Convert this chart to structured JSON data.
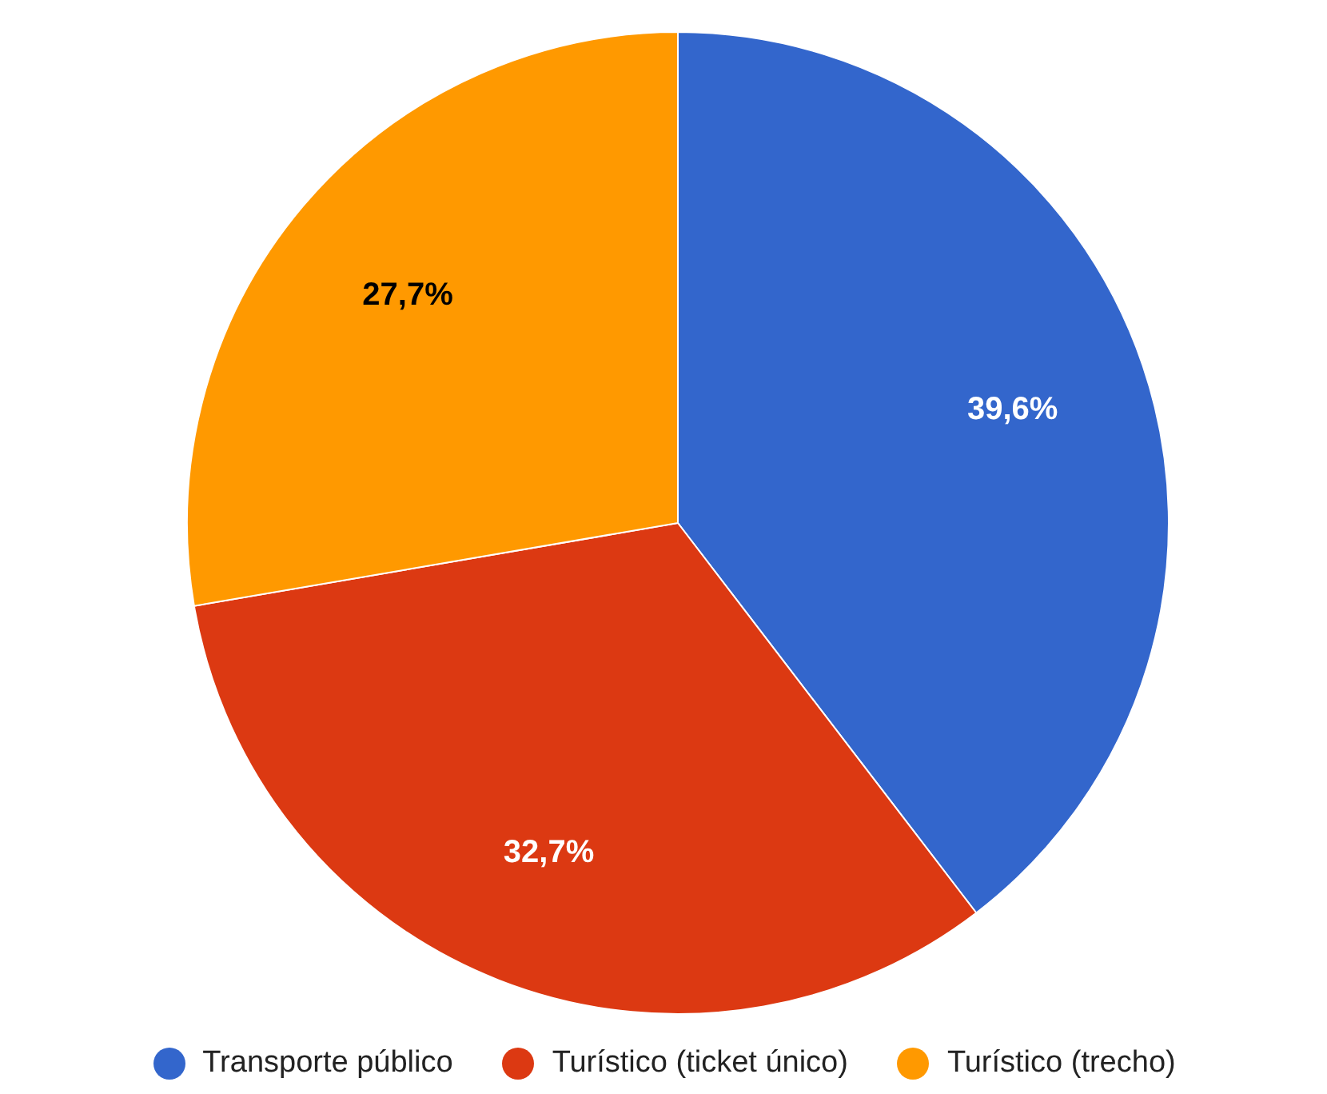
{
  "chart_data": {
    "type": "pie",
    "categories": [
      "Transporte público",
      "Turístico (ticket único)",
      "Turístico (trecho)"
    ],
    "values": [
      39.6,
      32.7,
      27.7
    ],
    "colors": [
      "#3366cc",
      "#dc3912",
      "#ff9900"
    ],
    "value_labels": [
      "39,6%",
      "32,7%",
      "27,7%"
    ],
    "legend": "bottom"
  }
}
